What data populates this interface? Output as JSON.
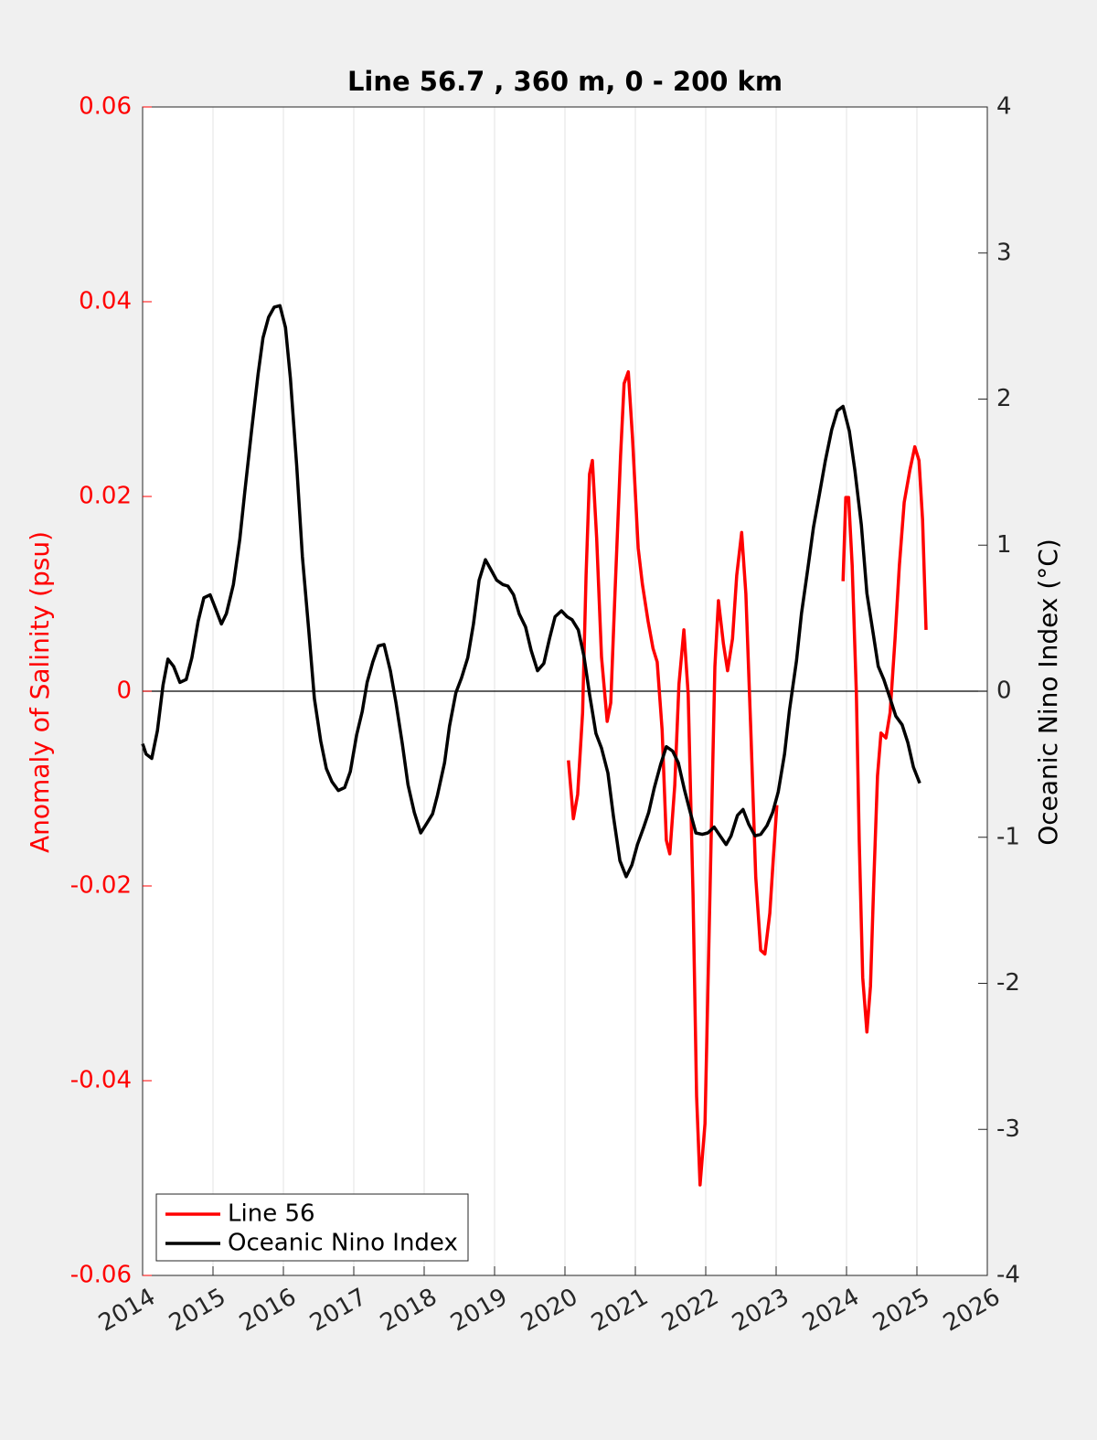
{
  "chart_data": {
    "type": "line",
    "title": "Line 56.7 , 360 m, 0 - 200 km",
    "ylabel": "Anomaly of Salinity (psu)",
    "y2label": "Oceanic Nino Index (°C)",
    "ylabel_color": "#ff0000",
    "xlim": [
      2014,
      2026
    ],
    "xticks": [
      2014,
      2015,
      2016,
      2017,
      2018,
      2019,
      2020,
      2021,
      2022,
      2023,
      2024,
      2025,
      2026
    ],
    "ylim": [
      -0.06,
      0.06
    ],
    "yticks": [
      -0.06,
      -0.04,
      -0.02,
      0,
      0.02,
      0.04,
      0.06
    ],
    "y2lim": [
      -4,
      4
    ],
    "y2ticks": [
      -4,
      -3,
      -2,
      -1,
      0,
      1,
      2,
      3,
      4
    ],
    "grid": "x",
    "zero_line": true,
    "legend": "lower left",
    "series": [
      {
        "name": "Line 56",
        "color": "#ff0000",
        "axis": "y",
        "x": [
          2020.05,
          2020.12,
          2020.18,
          2020.25,
          2020.3,
          2020.35,
          2020.39,
          2020.45,
          2020.52,
          2020.6,
          2020.65,
          2020.71,
          2020.79,
          2020.84,
          2020.9,
          2020.96,
          2021.04,
          2021.1,
          2021.18,
          2021.25,
          2021.31,
          2021.38,
          2021.44,
          2021.49,
          2021.56,
          2021.62,
          2021.69,
          2021.75,
          2021.82,
          2021.87,
          2021.92,
          2021.99,
          2022.06,
          2022.13,
          2022.18,
          2022.25,
          2022.31,
          2022.38,
          2022.44,
          2022.51,
          2022.57,
          2022.64,
          2022.71,
          2022.78,
          2022.84,
          2022.91,
          2022.96,
          2023.01,
          null,
          2023.95,
          2023.99,
          2024.03,
          2024.08,
          2024.14,
          2024.18,
          2024.23,
          2024.29,
          2024.34,
          2024.39,
          2024.44,
          2024.49,
          2024.56,
          2024.62,
          2024.69,
          2024.75,
          2024.82,
          2024.9,
          2024.97,
          2025.03,
          2025.08,
          2025.13
        ],
        "values": [
          -0.0071,
          -0.0131,
          -0.0106,
          -0.0022,
          0.0119,
          0.0223,
          0.0237,
          0.0157,
          0.0035,
          -0.0031,
          -0.0012,
          0.01,
          0.0241,
          0.0316,
          0.0328,
          0.026,
          0.0147,
          0.011,
          0.0072,
          0.0044,
          0.003,
          -0.004,
          -0.0153,
          -0.0167,
          -0.0097,
          0.0007,
          0.0063,
          -0.0003,
          -0.0209,
          -0.0416,
          -0.0507,
          -0.0444,
          -0.0209,
          0.0025,
          0.0093,
          0.0049,
          0.0021,
          0.0054,
          0.0119,
          0.0163,
          0.01,
          -0.004,
          -0.0191,
          -0.0266,
          -0.027,
          -0.0228,
          -0.0172,
          -0.0117,
          null,
          0.0113,
          0.0199,
          0.0199,
          0.0129,
          -0.0003,
          -0.0153,
          -0.0294,
          -0.035,
          -0.0303,
          -0.0191,
          -0.0087,
          -0.0043,
          -0.0048,
          -0.0022,
          0.0054,
          0.0129,
          0.0194,
          0.0227,
          0.0251,
          0.0237,
          0.0176,
          0.0063
        ]
      },
      {
        "name": "Oceanic Nino Index",
        "color": "#000000",
        "axis": "y2",
        "x": [
          2014.0,
          2014.05,
          2014.13,
          2014.21,
          2014.29,
          2014.36,
          2014.44,
          2014.53,
          2014.62,
          2014.7,
          2014.79,
          2014.87,
          2014.96,
          2015.04,
          2015.12,
          2015.19,
          2015.29,
          2015.38,
          2015.45,
          2015.55,
          2015.64,
          2015.71,
          2015.79,
          2015.87,
          2015.95,
          2016.03,
          2016.1,
          2016.19,
          2016.27,
          2016.36,
          2016.44,
          2016.53,
          2016.61,
          2016.69,
          2016.78,
          2016.87,
          2016.95,
          2017.04,
          2017.12,
          2017.19,
          2017.27,
          2017.35,
          2017.43,
          2017.52,
          2017.6,
          2017.69,
          2017.77,
          2017.86,
          2017.95,
          2018.03,
          2018.12,
          2018.19,
          2018.29,
          2018.36,
          2018.45,
          2018.53,
          2018.62,
          2018.7,
          2018.78,
          2018.87,
          2018.95,
          2019.03,
          2019.12,
          2019.19,
          2019.27,
          2019.35,
          2019.44,
          2019.52,
          2019.61,
          2019.7,
          2019.78,
          2019.86,
          2019.95,
          2020.03,
          2020.1,
          2020.19,
          2020.27,
          2020.35,
          2020.44,
          2020.52,
          2020.61,
          2020.69,
          2020.78,
          2020.87,
          2020.95,
          2021.03,
          2021.12,
          2021.19,
          2021.27,
          2021.36,
          2021.44,
          2021.53,
          2021.61,
          2021.7,
          2021.78,
          2021.86,
          2021.95,
          2022.03,
          2022.12,
          2022.19,
          2022.29,
          2022.36,
          2022.45,
          2022.53,
          2022.61,
          2022.7,
          2022.78,
          2022.87,
          2022.95,
          2023.03,
          2023.12,
          2023.19,
          2023.29,
          2023.36,
          2023.45,
          2023.53,
          2023.62,
          2023.7,
          2023.79,
          2023.87,
          2023.95,
          2024.04,
          2024.12,
          2024.21,
          2024.29,
          2024.38,
          2024.45,
          2024.53,
          2024.62,
          2024.7,
          2024.79,
          2024.87,
          2024.95,
          2025.04
        ],
        "values": [
          -0.36,
          -0.43,
          -0.46,
          -0.27,
          0.04,
          0.22,
          0.17,
          0.06,
          0.08,
          0.23,
          0.48,
          0.64,
          0.66,
          0.56,
          0.46,
          0.53,
          0.73,
          1.04,
          1.36,
          1.79,
          2.17,
          2.42,
          2.56,
          2.63,
          2.64,
          2.49,
          2.14,
          1.54,
          0.92,
          0.42,
          -0.05,
          -0.34,
          -0.53,
          -0.62,
          -0.68,
          -0.66,
          -0.55,
          -0.3,
          -0.14,
          0.06,
          0.2,
          0.31,
          0.32,
          0.14,
          -0.08,
          -0.36,
          -0.64,
          -0.83,
          -0.97,
          -0.91,
          -0.84,
          -0.71,
          -0.49,
          -0.24,
          -0.01,
          0.09,
          0.23,
          0.46,
          0.76,
          0.9,
          0.83,
          0.76,
          0.73,
          0.72,
          0.66,
          0.53,
          0.44,
          0.28,
          0.14,
          0.19,
          0.36,
          0.51,
          0.55,
          0.51,
          0.49,
          0.42,
          0.24,
          -0.02,
          -0.29,
          -0.39,
          -0.56,
          -0.86,
          -1.16,
          -1.27,
          -1.19,
          -1.05,
          -0.93,
          -0.83,
          -0.66,
          -0.5,
          -0.38,
          -0.41,
          -0.49,
          -0.68,
          -0.83,
          -0.97,
          -0.98,
          -0.97,
          -0.93,
          -0.98,
          -1.05,
          -0.99,
          -0.85,
          -0.81,
          -0.91,
          -0.99,
          -0.98,
          -0.92,
          -0.83,
          -0.69,
          -0.43,
          -0.13,
          0.21,
          0.53,
          0.84,
          1.12,
          1.36,
          1.58,
          1.79,
          1.92,
          1.95,
          1.78,
          1.51,
          1.14,
          0.67,
          0.39,
          0.17,
          0.08,
          -0.05,
          -0.17,
          -0.23,
          -0.35,
          -0.52,
          -0.63
        ]
      }
    ]
  }
}
